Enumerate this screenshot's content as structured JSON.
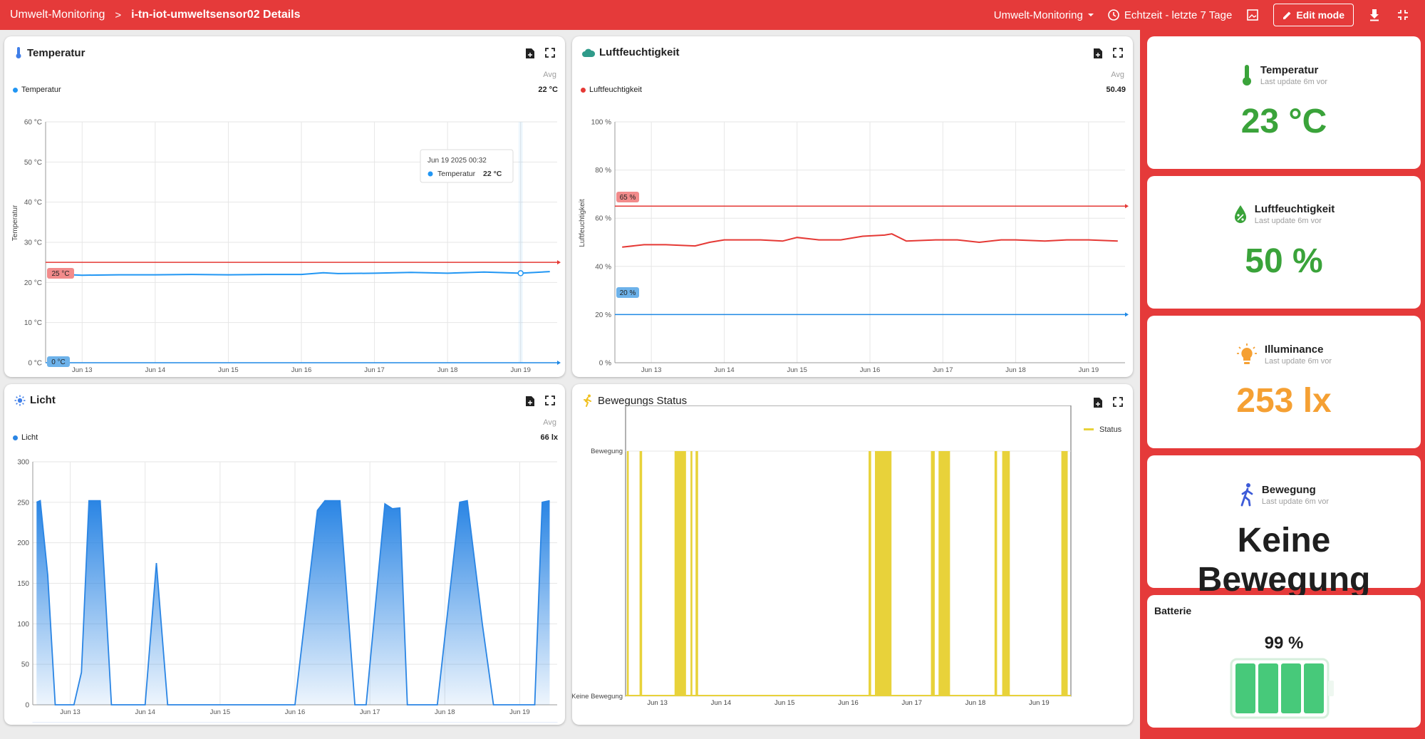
{
  "header": {
    "breadcrumb_root": "Umwelt-Monitoring",
    "separator": ">",
    "breadcrumb_current": "i-tn-iot-umweltsensor02 Details",
    "dashboard_selector": "Umwelt-Monitoring",
    "time_window": "Echtzeit - letzte 7 Tage",
    "edit_label": "Edit mode"
  },
  "widgets": {
    "temperature": {
      "title": "Temperatur",
      "avg_label": "Avg",
      "legend": "Temperatur",
      "legend_value": "22 °C",
      "tooltip_date": "Jun 19 2025 00:32",
      "tooltip_series": "Temperatur",
      "tooltip_value": "22 °C",
      "threshold_high": "25 °C",
      "threshold_low": "0 °C"
    },
    "humidity": {
      "title": "Luftfeuchtigkeit",
      "avg_label": "Avg",
      "legend": "Luftfeuchtigkeit",
      "legend_value": "50.49",
      "threshold_high": "65 %",
      "threshold_low": "20 %"
    },
    "light": {
      "title": "Licht",
      "avg_label": "Avg",
      "legend": "Licht",
      "legend_value": "66 lx"
    },
    "motion": {
      "title": "Bewegungs Status",
      "legend": "Status"
    }
  },
  "chart_data": [
    {
      "type": "line",
      "name": "temperature",
      "ylabel": "Temperatur",
      "ylim": [
        0,
        60
      ],
      "yticks": [
        "0 °C",
        "10 °C",
        "20 °C",
        "30 °C",
        "40 °C",
        "50 °C",
        "60 °C"
      ],
      "xticks": [
        "Jun 13",
        "Jun 14",
        "Jun 15",
        "Jun 16",
        "Jun 17",
        "Jun 18",
        "Jun 19"
      ],
      "x": [
        12.6,
        13.0,
        13.5,
        14.0,
        14.5,
        15.0,
        15.5,
        16.0,
        16.3,
        16.5,
        17.0,
        17.5,
        18.0,
        18.5,
        19.0,
        19.4
      ],
      "series": [
        {
          "name": "Temperatur",
          "color": "#2196f3",
          "values": [
            22.1,
            21.8,
            21.9,
            21.9,
            22.0,
            21.9,
            22.0,
            22.0,
            22.4,
            22.2,
            22.3,
            22.5,
            22.3,
            22.6,
            22.3,
            22.7
          ]
        }
      ],
      "thresholds": [
        {
          "value": 25,
          "color": "#e53935"
        },
        {
          "value": 0,
          "color": "#1e88e5"
        }
      ]
    },
    {
      "type": "line",
      "name": "humidity",
      "ylabel": "Luftfeuchtigkeit",
      "ylim": [
        0,
        100
      ],
      "yticks": [
        "0 %",
        "20 %",
        "40 %",
        "60 %",
        "80 %",
        "100 %"
      ],
      "xticks": [
        "Jun 13",
        "Jun 14",
        "Jun 15",
        "Jun 16",
        "Jun 17",
        "Jun 18",
        "Jun 19"
      ],
      "x": [
        12.6,
        12.9,
        13.2,
        13.6,
        13.8,
        14.0,
        14.5,
        14.8,
        15.0,
        15.3,
        15.6,
        15.9,
        16.2,
        16.3,
        16.5,
        16.9,
        17.2,
        17.5,
        17.8,
        18.0,
        18.4,
        18.7,
        19.0,
        19.4
      ],
      "series": [
        {
          "name": "Luftfeuchtigkeit",
          "color": "#e53935",
          "values": [
            48,
            49,
            49,
            48.5,
            50,
            51,
            51,
            50.5,
            52,
            51,
            51,
            52.5,
            53,
            53.5,
            50.5,
            51,
            51,
            50,
            51,
            51,
            50.5,
            51,
            51,
            50.5
          ]
        }
      ],
      "thresholds": [
        {
          "value": 65,
          "color": "#e53935"
        },
        {
          "value": 20,
          "color": "#1e88e5"
        }
      ]
    },
    {
      "type": "area",
      "name": "light",
      "ylim": [
        0,
        300
      ],
      "yticks": [
        "0",
        "50",
        "100",
        "150",
        "200",
        "250",
        "300"
      ],
      "xticks": [
        "Jun 13",
        "Jun 14",
        "Jun 15",
        "Jun 16",
        "Jun 17",
        "Jun 18",
        "Jun 19"
      ],
      "x": [
        12.55,
        12.6,
        12.7,
        12.8,
        13.05,
        13.15,
        13.25,
        13.4,
        13.55,
        13.8,
        14.0,
        14.15,
        14.3,
        14.45,
        15.0,
        16.0,
        16.3,
        16.4,
        16.6,
        16.8,
        16.95,
        17.2,
        17.3,
        17.4,
        17.5,
        17.65,
        17.9,
        18.2,
        18.3,
        18.5,
        18.65,
        18.8,
        19.2,
        19.3,
        19.4
      ],
      "series": [
        {
          "name": "Licht",
          "color": "#2a85e4",
          "values": [
            250,
            252,
            160,
            0,
            0,
            40,
            252,
            252,
            0,
            0,
            0,
            175,
            0,
            0,
            0,
            0,
            240,
            252,
            252,
            0,
            0,
            248,
            242,
            243,
            0,
            0,
            0,
            250,
            252,
            100,
            0,
            0,
            0,
            250,
            252
          ]
        }
      ]
    },
    {
      "type": "bar",
      "name": "motion",
      "yticks": [
        "Keine Bewegung",
        "Bewegung"
      ],
      "xticks": [
        "Jun 13",
        "Jun 14",
        "Jun 15",
        "Jun 16",
        "Jun 17",
        "Jun 18",
        "Jun 19"
      ],
      "series": [
        {
          "name": "Status",
          "color": "#e8d23a",
          "intervals": [
            [
              12.52,
              12.55
            ],
            [
              12.72,
              12.76
            ],
            [
              13.27,
              13.45
            ],
            [
              13.52,
              13.55
            ],
            [
              13.6,
              13.64
            ],
            [
              16.32,
              16.36
            ],
            [
              16.42,
              16.68
            ],
            [
              17.3,
              17.36
            ],
            [
              17.42,
              17.6
            ],
            [
              18.3,
              18.34
            ],
            [
              18.42,
              18.54
            ],
            [
              19.35,
              19.45
            ]
          ]
        }
      ]
    }
  ],
  "status_cards": {
    "temperature": {
      "title": "Temperatur",
      "subtitle": "Last update 6m vor",
      "value": "23 °C",
      "color": "#3aa33a"
    },
    "humidity": {
      "title": "Luftfeuchtigkeit",
      "subtitle": "Last update 6m vor",
      "value": "50 %",
      "color": "#3aa33a"
    },
    "illuminance": {
      "title": "Illuminance",
      "subtitle": "Last update 6m vor",
      "value": "253 lx",
      "color": "#f5a033"
    },
    "motion": {
      "title": "Bewegung",
      "subtitle": "Last update 6m vor",
      "value": "Keine Bewegung",
      "color": "#1f1f1f"
    },
    "battery": {
      "title": "Batterie",
      "value": "99 %",
      "level": 0.99,
      "color": "#47c97a"
    }
  }
}
